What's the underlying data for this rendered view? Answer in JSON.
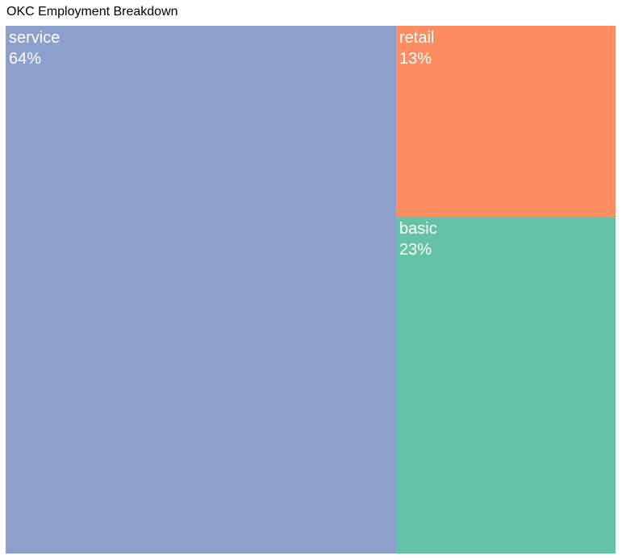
{
  "title": "OKC Employment Breakdown",
  "chart_data": {
    "type": "treemap",
    "title": "OKC Employment Breakdown",
    "items": [
      {
        "name": "service",
        "value": 64,
        "label": "64%",
        "color": "#8da0cb"
      },
      {
        "name": "retail",
        "value": 13,
        "label": "13%",
        "color": "#fc8d62"
      },
      {
        "name": "basic",
        "value": 23,
        "label": "23%",
        "color": "#66c2a5"
      }
    ]
  }
}
